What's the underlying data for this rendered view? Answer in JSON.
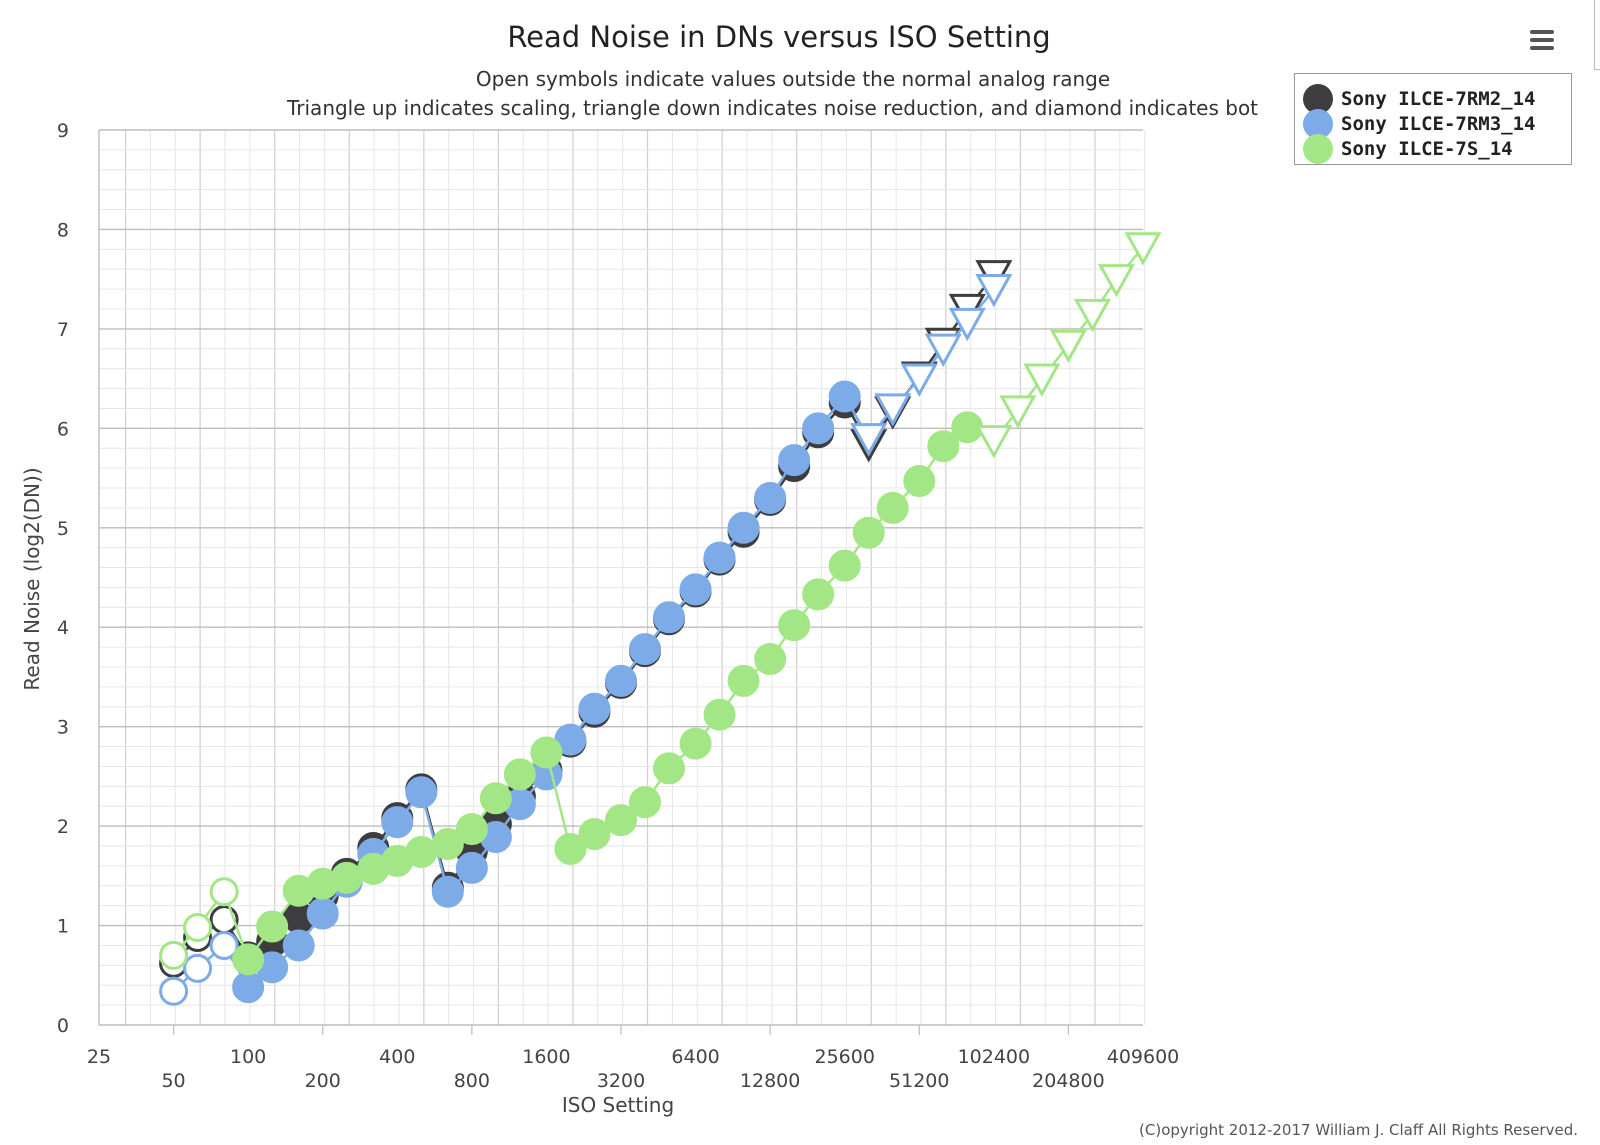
{
  "chart_data": {
    "type": "line",
    "title": "Read Noise in DNs versus ISO Setting",
    "subtitle_lines": [
      "Open symbols indicate values outside the normal analog range",
      "Triangle up indicates scaling, triangle down indicates noise reduction, and diamond indicates bot"
    ],
    "xlabel": "ISO Setting",
    "ylabel": "Read Noise (log2(DN))",
    "x_scale": "log2",
    "xlim": [
      25,
      409600
    ],
    "ylim": [
      0,
      9
    ],
    "y_ticks": [
      0,
      1,
      2,
      3,
      4,
      5,
      6,
      7,
      8,
      9
    ],
    "x_ticks_upper": [
      25,
      100,
      400,
      1600,
      6400,
      25600,
      102400,
      409600
    ],
    "x_ticks_lower": [
      50,
      200,
      800,
      3200,
      12800,
      51200,
      204800
    ],
    "x_tick_labels_upper": [
      "25",
      "100",
      "400",
      "1600",
      "6400",
      "25600",
      "102400",
      "409600"
    ],
    "x_tick_labels_lower": [
      "50",
      "200",
      "800",
      "3200",
      "12800",
      "51200",
      "204800"
    ],
    "grid": true,
    "legend_position": "top-right",
    "series": [
      {
        "name": "Sony ILCE-7RM2_14",
        "color": "#3d3d40",
        "points": [
          [
            50,
            0.62,
            "open-circle"
          ],
          [
            62.5,
            0.88,
            "open-circle"
          ],
          [
            80,
            1.06,
            "open-circle"
          ],
          [
            100,
            0.68,
            "circle"
          ],
          [
            125,
            0.84,
            "circle"
          ],
          [
            160,
            1.08,
            "circle"
          ],
          [
            200,
            1.3,
            "circle"
          ],
          [
            250,
            1.52,
            "circle"
          ],
          [
            320,
            1.78,
            "circle"
          ],
          [
            400,
            2.08,
            "circle"
          ],
          [
            500,
            2.37,
            "circle"
          ],
          [
            640,
            1.38,
            "circle"
          ],
          [
            800,
            1.75,
            "circle"
          ],
          [
            1000,
            2.02,
            "circle"
          ],
          [
            1250,
            2.3,
            "circle"
          ],
          [
            1600,
            2.56,
            "circle"
          ],
          [
            2000,
            2.85,
            "circle"
          ],
          [
            2500,
            3.15,
            "circle"
          ],
          [
            3200,
            3.44,
            "circle"
          ],
          [
            4000,
            3.76,
            "circle"
          ],
          [
            5000,
            4.08,
            "circle"
          ],
          [
            6400,
            4.36,
            "circle"
          ],
          [
            8000,
            4.68,
            "circle"
          ],
          [
            10000,
            4.96,
            "circle"
          ],
          [
            12800,
            5.28,
            "circle"
          ],
          [
            16000,
            5.62,
            "circle"
          ],
          [
            20000,
            5.96,
            "circle"
          ],
          [
            25600,
            6.26,
            "circle"
          ],
          [
            32000,
            5.84,
            "triangle-down"
          ],
          [
            40000,
            6.17,
            "triangle-down"
          ],
          [
            51200,
            6.52,
            "triangle-down"
          ],
          [
            64000,
            6.86,
            "triangle-down"
          ],
          [
            80000,
            7.2,
            "triangle-down"
          ],
          [
            102400,
            7.54,
            "triangle-down"
          ]
        ]
      },
      {
        "name": "Sony ILCE-7RM3_14",
        "color": "#7cabe7",
        "points": [
          [
            50,
            0.34,
            "open-circle"
          ],
          [
            62.5,
            0.57,
            "open-circle"
          ],
          [
            80,
            0.8,
            "open-circle"
          ],
          [
            100,
            0.38,
            "circle"
          ],
          [
            125,
            0.58,
            "circle"
          ],
          [
            160,
            0.8,
            "circle"
          ],
          [
            200,
            1.12,
            "circle"
          ],
          [
            250,
            1.44,
            "circle"
          ],
          [
            320,
            1.72,
            "circle"
          ],
          [
            400,
            2.04,
            "circle"
          ],
          [
            500,
            2.34,
            "circle"
          ],
          [
            640,
            1.34,
            "circle"
          ],
          [
            800,
            1.58,
            "circle"
          ],
          [
            1000,
            1.89,
            "circle"
          ],
          [
            1250,
            2.22,
            "circle"
          ],
          [
            1600,
            2.52,
            "circle"
          ],
          [
            2000,
            2.87,
            "circle"
          ],
          [
            2500,
            3.18,
            "circle"
          ],
          [
            3200,
            3.46,
            "circle"
          ],
          [
            4000,
            3.78,
            "circle"
          ],
          [
            5000,
            4.1,
            "circle"
          ],
          [
            6400,
            4.38,
            "circle"
          ],
          [
            8000,
            4.7,
            "circle"
          ],
          [
            10000,
            5.0,
            "circle"
          ],
          [
            12800,
            5.3,
            "circle"
          ],
          [
            16000,
            5.68,
            "circle"
          ],
          [
            20000,
            6.0,
            "circle"
          ],
          [
            25600,
            6.32,
            "circle"
          ],
          [
            32000,
            5.9,
            "triangle-down"
          ],
          [
            40000,
            6.2,
            "triangle-down"
          ],
          [
            51200,
            6.5,
            "triangle-down"
          ],
          [
            64000,
            6.8,
            "triangle-down"
          ],
          [
            80000,
            7.06,
            "triangle-down"
          ],
          [
            102400,
            7.4,
            "triangle-down"
          ]
        ]
      },
      {
        "name": "Sony ILCE-7S_14",
        "color": "#a3e686",
        "points": [
          [
            50,
            0.7,
            "open-circle"
          ],
          [
            62.5,
            0.98,
            "open-circle"
          ],
          [
            80,
            1.34,
            "open-circle"
          ],
          [
            100,
            0.66,
            "circle"
          ],
          [
            125,
            0.99,
            "circle"
          ],
          [
            160,
            1.35,
            "circle"
          ],
          [
            200,
            1.42,
            "circle"
          ],
          [
            250,
            1.48,
            "circle"
          ],
          [
            320,
            1.57,
            "circle"
          ],
          [
            400,
            1.65,
            "circle"
          ],
          [
            500,
            1.74,
            "circle"
          ],
          [
            640,
            1.82,
            "circle"
          ],
          [
            800,
            1.97,
            "circle"
          ],
          [
            1000,
            2.28,
            "circle"
          ],
          [
            1250,
            2.52,
            "circle"
          ],
          [
            1600,
            2.74,
            "circle"
          ],
          [
            2000,
            1.77,
            "circle"
          ],
          [
            2500,
            1.92,
            "circle"
          ],
          [
            3200,
            2.06,
            "circle"
          ],
          [
            4000,
            2.24,
            "circle"
          ],
          [
            5000,
            2.58,
            "circle"
          ],
          [
            6400,
            2.83,
            "circle"
          ],
          [
            8000,
            3.12,
            "circle"
          ],
          [
            10000,
            3.46,
            "circle"
          ],
          [
            12800,
            3.68,
            "circle"
          ],
          [
            16000,
            4.02,
            "circle"
          ],
          [
            20000,
            4.33,
            "circle"
          ],
          [
            25600,
            4.62,
            "circle"
          ],
          [
            32000,
            4.95,
            "circle"
          ],
          [
            40000,
            5.2,
            "circle"
          ],
          [
            51200,
            5.47,
            "circle"
          ],
          [
            64000,
            5.82,
            "circle"
          ],
          [
            80000,
            6.01,
            "circle"
          ],
          [
            102400,
            5.88,
            "triangle-down"
          ],
          [
            128000,
            6.18,
            "triangle-down"
          ],
          [
            160000,
            6.5,
            "triangle-down"
          ],
          [
            204800,
            6.84,
            "triangle-down"
          ],
          [
            256000,
            7.15,
            "triangle-down"
          ],
          [
            320000,
            7.5,
            "triangle-down"
          ],
          [
            409600,
            7.82,
            "triangle-down"
          ]
        ]
      }
    ],
    "copyright": "(C)opyright 2012-2017 William J. Claff All Rights Reserved."
  }
}
